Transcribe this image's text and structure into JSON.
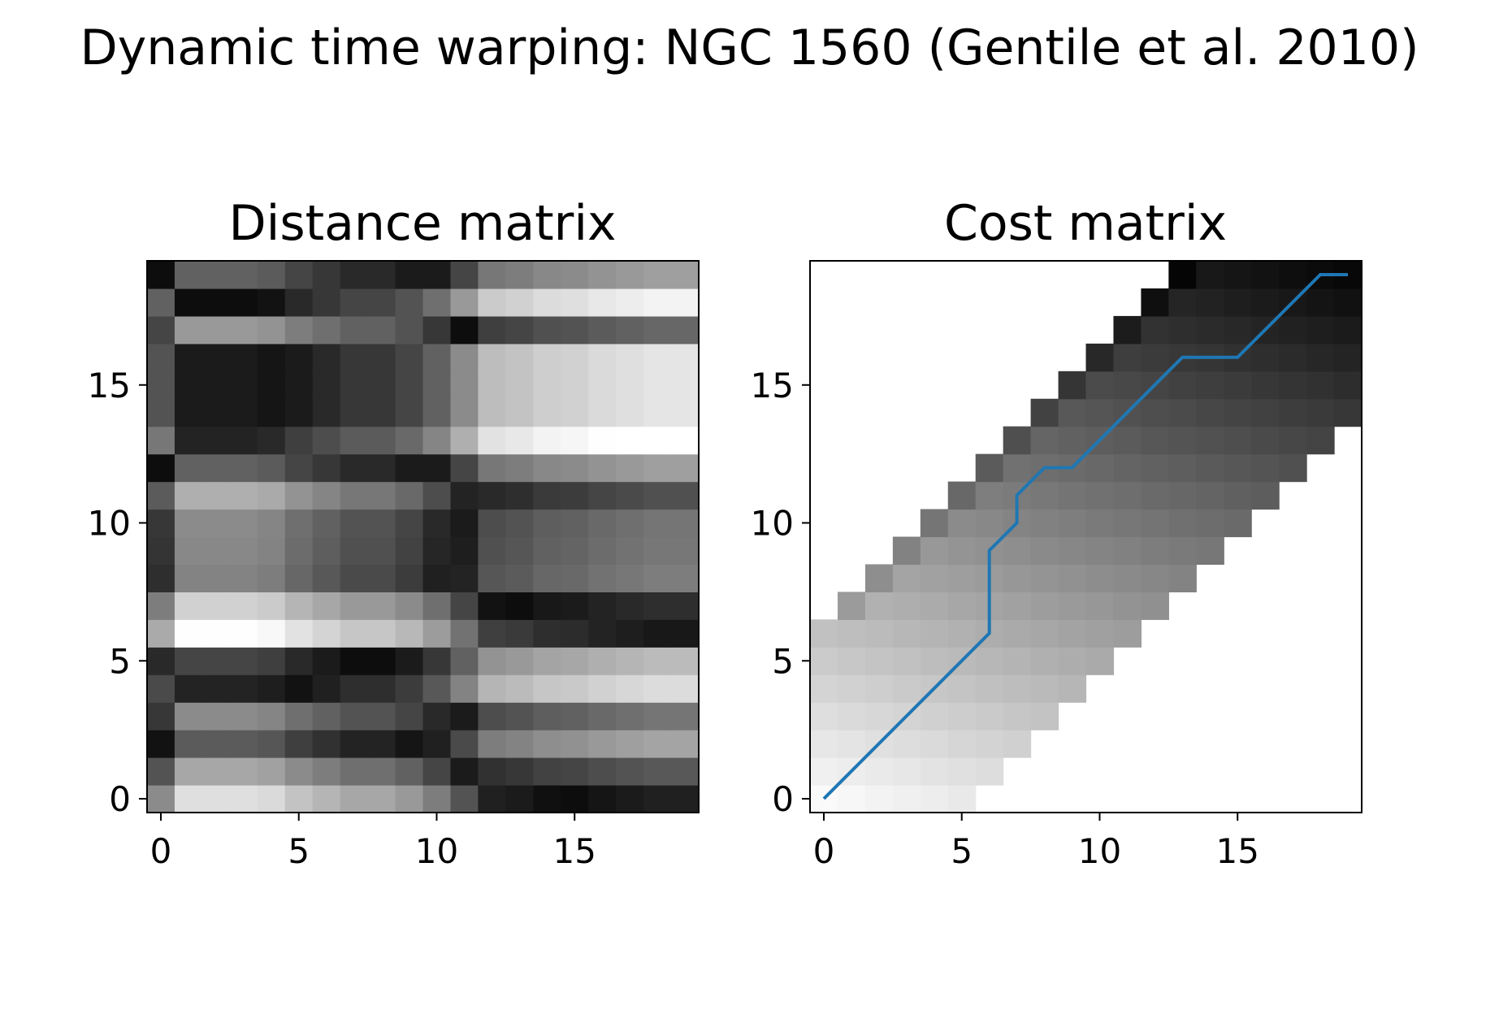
{
  "figure": {
    "title": "Dynamic time warping: NGC 1560 (Gentile et al. 2010)"
  },
  "chart_data": [
    {
      "type": "heatmap",
      "title": "Distance matrix",
      "colormap": "gray",
      "color_scale_note": "values are normalized intensities, 0 = black, 1 = white",
      "xlim": [
        -0.5,
        19.5
      ],
      "ylim": [
        -0.5,
        19.5
      ],
      "xticks": [
        0,
        5,
        10,
        15
      ],
      "yticks": [
        0,
        5,
        10,
        15
      ],
      "grid": false,
      "row_profile": [
        0.85,
        0.65,
        0.38,
        0.55,
        0.18,
        0.3,
        0.96,
        0.8,
        0.52,
        0.54,
        0.55,
        0.68,
        0.4,
        0.02,
        0.15,
        0.15,
        0.15,
        0.6,
        0.1,
        0.4
      ],
      "col_profile": [
        0.4,
        0.1,
        0.1,
        0.1,
        0.12,
        0.2,
        0.25,
        0.3,
        0.3,
        0.35,
        0.45,
        0.6,
        0.78,
        0.8,
        0.84,
        0.85,
        0.88,
        0.9,
        0.92,
        0.92
      ]
    },
    {
      "type": "heatmap",
      "title": "Cost matrix",
      "colormap": "gray",
      "color_scale_note": "cells outside the band are empty (white)",
      "xlim": [
        -0.5,
        19.5
      ],
      "ylim": [
        -0.5,
        19.5
      ],
      "xticks": [
        0,
        5,
        10,
        15
      ],
      "yticks": [
        0,
        5,
        10,
        15
      ],
      "grid": false,
      "band_min_col_per_row": [
        0,
        0,
        0,
        0,
        0,
        0,
        0,
        1,
        2,
        3,
        4,
        5,
        6,
        7,
        8,
        9,
        10,
        11,
        12,
        13
      ],
      "band_max_col_per_row": [
        5,
        6,
        7,
        8,
        9,
        10,
        11,
        12,
        13,
        14,
        15,
        16,
        17,
        18,
        19,
        19,
        19,
        19,
        19,
        19
      ],
      "warping_path": {
        "x": [
          0,
          6,
          6,
          7,
          7,
          8,
          9,
          13,
          15,
          18,
          19
        ],
        "y": [
          0,
          6,
          9,
          10,
          11,
          12,
          12,
          16,
          16,
          19,
          19
        ],
        "color": "#1f77b4"
      }
    }
  ]
}
